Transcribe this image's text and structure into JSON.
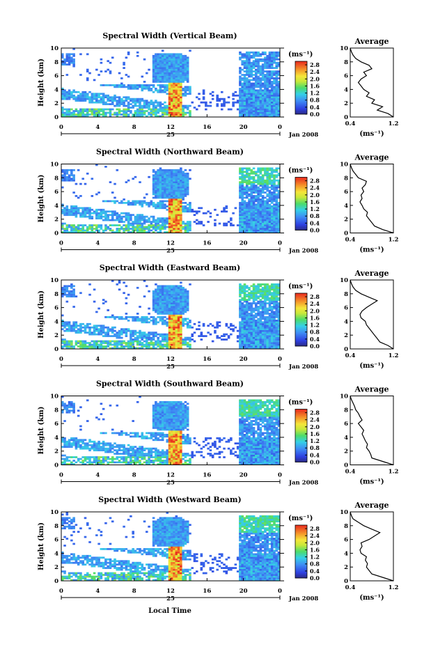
{
  "figure": {
    "date_label": "Jan 2008",
    "day_label": "25",
    "xaxis_label": "Local Time"
  },
  "chart_data": [
    {
      "type": "heatmap",
      "title": "Spectral Width (Vertical Beam)",
      "ylabel": "Height (km)",
      "ylim": [
        0,
        10
      ],
      "yticks": [
        "0",
        "2",
        "4",
        "6",
        "8",
        "10"
      ],
      "xlim": [
        0,
        24
      ],
      "xticks": [
        "0",
        "4",
        "8",
        "12",
        "16",
        "20",
        "0"
      ],
      "colorbar_unit": "(ms⁻¹)",
      "colorbar_ticks": [
        "2.8",
        "2.4",
        "2.0",
        "1.6",
        "1.2",
        "0.8",
        "0.4",
        "0.0"
      ],
      "colorbar_range": [
        0.0,
        3.0
      ],
      "profile": {
        "title": "Average",
        "xlabel": "(ms⁻¹)",
        "xlim": [
          0.4,
          1.2
        ],
        "xticks": [
          "0.4",
          "1.2"
        ],
        "ylim": [
          0,
          10
        ],
        "yticks": [
          "0",
          "2",
          "4",
          "6",
          "8",
          "10"
        ],
        "points": [
          [
            1.2,
            0
          ],
          [
            1.1,
            0.5
          ],
          [
            0.9,
            1
          ],
          [
            1.0,
            1.5
          ],
          [
            0.8,
            2
          ],
          [
            0.85,
            2.5
          ],
          [
            0.7,
            3
          ],
          [
            0.75,
            3.5
          ],
          [
            0.65,
            4
          ],
          [
            0.6,
            4.5
          ],
          [
            0.55,
            5
          ],
          [
            0.6,
            5.5
          ],
          [
            0.7,
            6
          ],
          [
            0.65,
            6.5
          ],
          [
            0.8,
            7
          ],
          [
            0.75,
            7.5
          ],
          [
            0.6,
            8
          ],
          [
            0.5,
            8.5
          ],
          [
            0.45,
            9
          ],
          [
            0.42,
            9.5
          ],
          [
            0.4,
            10
          ]
        ]
      }
    },
    {
      "type": "heatmap",
      "title": "Spectral Width (Northward Beam)",
      "ylabel": "Height (km)",
      "ylim": [
        0,
        10
      ],
      "yticks": [
        "0",
        "2",
        "4",
        "6",
        "8",
        "10"
      ],
      "xlim": [
        0,
        24
      ],
      "xticks": [
        "0",
        "4",
        "8",
        "12",
        "16",
        "20",
        "0"
      ],
      "colorbar_unit": "(ms⁻¹)",
      "colorbar_ticks": [
        "2.8",
        "2.4",
        "2.0",
        "1.6",
        "1.2",
        "0.8",
        "0.4",
        "0.0"
      ],
      "colorbar_range": [
        0.0,
        3.0
      ],
      "profile": {
        "title": "Average",
        "xlabel": "(ms⁻¹)",
        "xlim": [
          0.4,
          1.2
        ],
        "xticks": [
          "0.4",
          "1.2"
        ],
        "ylim": [
          0,
          10
        ],
        "yticks": [
          "0",
          "2",
          "4",
          "6",
          "8",
          "10"
        ],
        "points": [
          [
            1.2,
            0
          ],
          [
            1.0,
            0.5
          ],
          [
            0.85,
            1
          ],
          [
            0.8,
            1.5
          ],
          [
            0.75,
            2
          ],
          [
            0.7,
            2.5
          ],
          [
            0.72,
            3
          ],
          [
            0.65,
            3.5
          ],
          [
            0.62,
            4
          ],
          [
            0.58,
            4.5
          ],
          [
            0.62,
            5
          ],
          [
            0.6,
            5.5
          ],
          [
            0.65,
            6
          ],
          [
            0.62,
            6.5
          ],
          [
            0.68,
            7
          ],
          [
            0.7,
            7.5
          ],
          [
            0.55,
            8
          ],
          [
            0.5,
            8.5
          ],
          [
            0.45,
            9
          ],
          [
            0.42,
            9.5
          ],
          [
            0.4,
            10
          ]
        ]
      }
    },
    {
      "type": "heatmap",
      "title": "Spectral Width (Eastward Beam)",
      "ylabel": "Height (km)",
      "ylim": [
        0,
        10
      ],
      "yticks": [
        "0",
        "2",
        "4",
        "6",
        "8",
        "10"
      ],
      "xlim": [
        0,
        24
      ],
      "xticks": [
        "0",
        "4",
        "8",
        "12",
        "16",
        "20",
        "0"
      ],
      "colorbar_unit": "(ms⁻¹)",
      "colorbar_ticks": [
        "2.8",
        "2.4",
        "2.0",
        "1.6",
        "1.2",
        "0.8",
        "0.4",
        "0.0"
      ],
      "colorbar_range": [
        0.0,
        3.0
      ],
      "profile": {
        "title": "Average",
        "xlabel": "(ms⁻¹)",
        "xlim": [
          0.4,
          1.2
        ],
        "xticks": [
          "0.4",
          "1.2"
        ],
        "ylim": [
          0,
          10
        ],
        "yticks": [
          "0",
          "2",
          "4",
          "6",
          "8",
          "10"
        ],
        "points": [
          [
            1.2,
            0
          ],
          [
            1.1,
            0.5
          ],
          [
            0.95,
            1
          ],
          [
            0.9,
            1.5
          ],
          [
            0.85,
            2
          ],
          [
            0.8,
            2.5
          ],
          [
            0.75,
            3
          ],
          [
            0.7,
            3.5
          ],
          [
            0.68,
            4
          ],
          [
            0.6,
            4.5
          ],
          [
            0.58,
            5
          ],
          [
            0.62,
            5.5
          ],
          [
            0.7,
            6
          ],
          [
            0.8,
            6.5
          ],
          [
            0.9,
            7
          ],
          [
            0.75,
            7.5
          ],
          [
            0.6,
            8
          ],
          [
            0.5,
            8.5
          ],
          [
            0.45,
            9
          ],
          [
            0.42,
            9.5
          ],
          [
            0.4,
            10
          ]
        ]
      }
    },
    {
      "type": "heatmap",
      "title": "Spectral Width (Southward Beam)",
      "ylabel": "Height (km)",
      "ylim": [
        0,
        10
      ],
      "yticks": [
        "0",
        "2",
        "4",
        "6",
        "8",
        "10"
      ],
      "xlim": [
        0,
        24
      ],
      "xticks": [
        "0",
        "4",
        "8",
        "12",
        "16",
        "20",
        "0"
      ],
      "colorbar_unit": "(ms⁻¹)",
      "colorbar_ticks": [
        "2.8",
        "2.4",
        "2.0",
        "1.6",
        "1.2",
        "0.8",
        "0.4",
        "0.0"
      ],
      "colorbar_range": [
        0.0,
        3.0
      ],
      "profile": {
        "title": "Average",
        "xlabel": "(ms⁻¹)",
        "xlim": [
          0.4,
          1.2
        ],
        "xticks": [
          "0.4",
          "1.2"
        ],
        "ylim": [
          0,
          10
        ],
        "yticks": [
          "0",
          "2",
          "4",
          "6",
          "8",
          "10"
        ],
        "points": [
          [
            1.2,
            0
          ],
          [
            1.0,
            0.5
          ],
          [
            0.8,
            1
          ],
          [
            0.78,
            1.5
          ],
          [
            0.75,
            2
          ],
          [
            0.7,
            2.5
          ],
          [
            0.72,
            3
          ],
          [
            0.68,
            3.5
          ],
          [
            0.65,
            4
          ],
          [
            0.62,
            4.5
          ],
          [
            0.65,
            5
          ],
          [
            0.6,
            5.5
          ],
          [
            0.55,
            6
          ],
          [
            0.62,
            6.5
          ],
          [
            0.58,
            7
          ],
          [
            0.55,
            7.5
          ],
          [
            0.5,
            8
          ],
          [
            0.48,
            8.5
          ],
          [
            0.45,
            9
          ],
          [
            0.42,
            9.5
          ],
          [
            0.4,
            10
          ]
        ]
      }
    },
    {
      "type": "heatmap",
      "title": "Spectral Width (Westward Beam)",
      "ylabel": "Height (km)",
      "ylim": [
        0,
        10
      ],
      "yticks": [
        "0",
        "2",
        "4",
        "6",
        "8",
        "10"
      ],
      "xlim": [
        0,
        24
      ],
      "xticks": [
        "0",
        "4",
        "8",
        "12",
        "16",
        "20",
        "0"
      ],
      "colorbar_unit": "(ms⁻¹)",
      "colorbar_ticks": [
        "2.8",
        "2.4",
        "2.0",
        "1.6",
        "1.2",
        "0.8",
        "0.4",
        "0.0"
      ],
      "colorbar_range": [
        0.0,
        3.0
      ],
      "profile": {
        "title": "Average",
        "xlabel": "(ms⁻¹)",
        "xlim": [
          0.4,
          1.2
        ],
        "xticks": [
          "0.4",
          "1.2"
        ],
        "ylim": [
          0,
          10
        ],
        "yticks": [
          "0",
          "2",
          "4",
          "6",
          "8",
          "10"
        ],
        "points": [
          [
            1.2,
            0
          ],
          [
            1.0,
            0.5
          ],
          [
            0.8,
            1
          ],
          [
            0.75,
            1.5
          ],
          [
            0.7,
            2
          ],
          [
            0.72,
            2.5
          ],
          [
            0.68,
            3
          ],
          [
            0.7,
            3.5
          ],
          [
            0.6,
            4
          ],
          [
            0.58,
            4.5
          ],
          [
            0.62,
            5
          ],
          [
            0.6,
            5.5
          ],
          [
            0.75,
            6
          ],
          [
            0.85,
            6.5
          ],
          [
            0.95,
            7
          ],
          [
            0.8,
            7.5
          ],
          [
            0.65,
            8
          ],
          [
            0.55,
            8.5
          ],
          [
            0.45,
            9
          ],
          [
            0.42,
            9.5
          ],
          [
            0.4,
            10
          ]
        ]
      }
    }
  ]
}
